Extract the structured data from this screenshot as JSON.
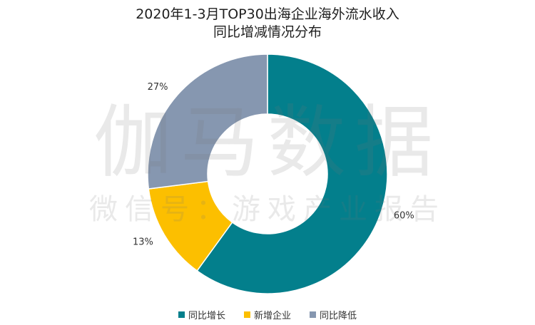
{
  "title": {
    "line1": "2020年1-3月TOP30出海企业海外流水收入",
    "line2": "同比增减情况分布"
  },
  "watermark": {
    "main": "伽马数据",
    "sub": "微信号：游戏产业报告"
  },
  "chart_data": {
    "type": "pie",
    "variant": "donut",
    "title": "2020年1-3月TOP30出海企业海外流水收入同比增减情况分布",
    "slices": [
      {
        "label": "同比增长",
        "value": 60,
        "display": "60%",
        "color": "#037f8c"
      },
      {
        "label": "新增企业",
        "value": 13,
        "display": "13%",
        "color": "#fcbf00"
      },
      {
        "label": "同比降低",
        "value": 27,
        "display": "27%",
        "color": "#8697b0"
      }
    ],
    "start_angle_deg": 0,
    "direction": "clockwise",
    "legend_position": "bottom"
  }
}
